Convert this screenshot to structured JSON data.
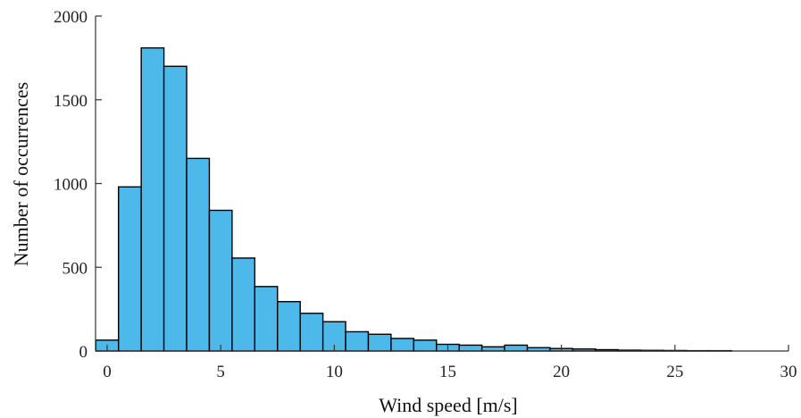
{
  "chart_data": {
    "type": "bar",
    "title": "",
    "xlabel": "Wind speed [m/s]",
    "ylabel": "Number of occurrences",
    "xlim": [
      -0.5,
      30
    ],
    "ylim": [
      0,
      2000
    ],
    "xticks": [
      0,
      5,
      10,
      15,
      20,
      25,
      30
    ],
    "yticks": [
      0,
      500,
      1000,
      1500,
      2000
    ],
    "bin_width": 1,
    "bin_left_edges": [
      -0.5,
      0.5,
      1.5,
      2.5,
      3.5,
      4.5,
      5.5,
      6.5,
      7.5,
      8.5,
      9.5,
      10.5,
      11.5,
      12.5,
      13.5,
      14.5,
      15.5,
      16.5,
      17.5,
      18.5,
      19.5,
      20.5,
      21.5,
      22.5,
      23.5,
      24.5,
      25.5,
      26.5
    ],
    "values": [
      65,
      980,
      1810,
      1700,
      1150,
      840,
      555,
      385,
      295,
      225,
      175,
      115,
      100,
      75,
      65,
      40,
      35,
      25,
      35,
      20,
      15,
      12,
      8,
      5,
      4,
      3,
      2,
      2
    ],
    "grid": false,
    "legend": "none",
    "bar_color": "#4db8ea",
    "edge_color": "#000000"
  }
}
